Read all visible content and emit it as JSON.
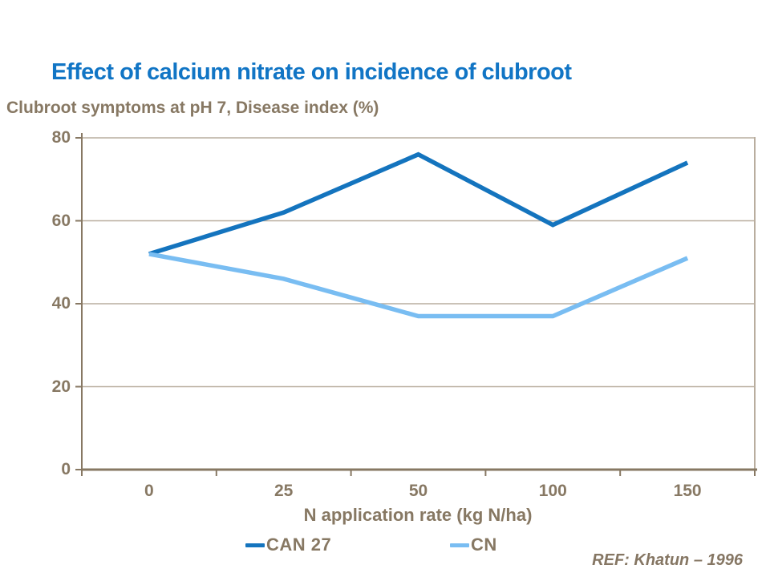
{
  "colors": {
    "title_blue": "#1175C5",
    "axis_text_brown": "#877863",
    "gridline": "#B9AE9F",
    "axis_line": "#877863",
    "series_dark_blue": "#1474BE",
    "series_light_blue": "#79BDF2",
    "background": "#FFFFFF"
  },
  "chart_data": {
    "type": "line",
    "title": "Effect of calcium nitrate on incidence of clubroot",
    "subtitle": "Clubroot symptoms at pH 7, Disease index (%)",
    "categories": [
      "0",
      "25",
      "50",
      "100",
      "150"
    ],
    "xlabel": "N application rate (kg N/ha)",
    "ylabel": "",
    "ylim": [
      0,
      80
    ],
    "yticks": [
      0,
      20,
      40,
      60,
      80
    ],
    "grid": true,
    "legend_position": "bottom",
    "series": [
      {
        "name": "CAN 27",
        "color": "#1474BE",
        "values": [
          52,
          62,
          76,
          59,
          74
        ]
      },
      {
        "name": "CN",
        "color": "#79BDF2",
        "values": [
          52,
          46,
          37,
          37,
          51
        ]
      }
    ],
    "annotation": "REF: Khatun – 1996"
  }
}
